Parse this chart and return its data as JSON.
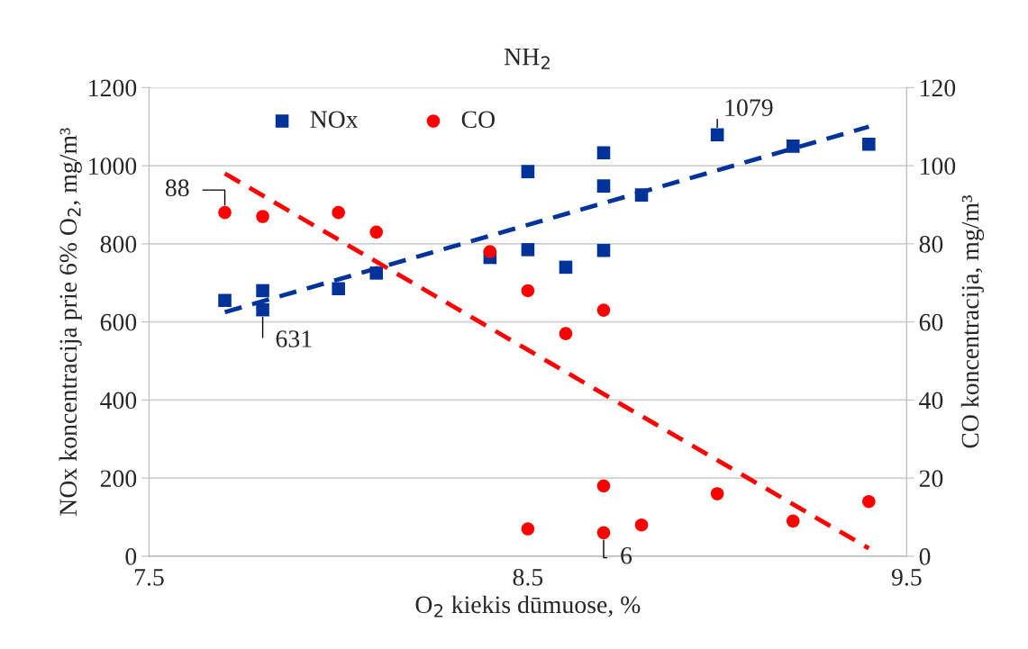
{
  "chart_data": {
    "type": "scatter",
    "title": "NH$_{2}$",
    "xlabel": "O$_{2}$ kiekis dūmuose, %",
    "ylabel": "NOx koncentracija prie 6% O$_{2}$, mg/m³",
    "y2label": "CO koncentracija, mg/m³",
    "xlim": [
      7.5,
      9.5
    ],
    "xticks": [
      7.5,
      8.5,
      9.5
    ],
    "ylim": [
      0,
      1200
    ],
    "yticks": [
      0,
      200,
      400,
      600,
      800,
      1000,
      1200
    ],
    "y2lim": [
      0,
      120
    ],
    "y2ticks": [
      0,
      20,
      40,
      60,
      80,
      100,
      120
    ],
    "grid": "y",
    "legend": "top",
    "series": [
      {
        "name": "NOx",
        "marker": "square",
        "color": "#003399",
        "x": [
          7.7,
          7.8,
          7.8,
          8.0,
          8.1,
          8.4,
          8.5,
          8.5,
          8.6,
          8.7,
          8.7,
          8.7,
          8.8,
          9.0,
          9.2,
          9.4
        ],
        "values": [
          655,
          680,
          631,
          685,
          725,
          765,
          985,
          785,
          740,
          1033,
          948,
          783,
          925,
          1079,
          1050,
          1055
        ],
        "value_labels": [
          null,
          null,
          "631",
          null,
          null,
          null,
          null,
          null,
          null,
          null,
          null,
          null,
          null,
          "1079",
          null,
          null
        ]
      },
      {
        "name": "CO",
        "marker": "circle",
        "axis": "y2",
        "color": "#ff0000",
        "x": [
          7.7,
          7.8,
          8.0,
          8.1,
          8.4,
          8.5,
          8.5,
          8.6,
          8.7,
          8.7,
          8.7,
          8.8,
          9.0,
          9.2,
          9.4
        ],
        "values": [
          88,
          87,
          88,
          83,
          78,
          68,
          7,
          57,
          63,
          18,
          6,
          8,
          16,
          9,
          14
        ],
        "value_labels": [
          "88",
          null,
          null,
          null,
          null,
          null,
          null,
          null,
          null,
          null,
          "6",
          null,
          null,
          null,
          null
        ]
      },
      {
        "type": "line",
        "line_style": "dashed",
        "color": "#003399",
        "x": [
          7.7,
          9.4
        ],
        "values": [
          625,
          1100
        ]
      },
      {
        "type": "line",
        "line_style": "dashed",
        "axis": "y2",
        "color": "#ff0000",
        "x": [
          7.7,
          9.4
        ],
        "values": [
          98,
          2
        ]
      }
    ]
  }
}
